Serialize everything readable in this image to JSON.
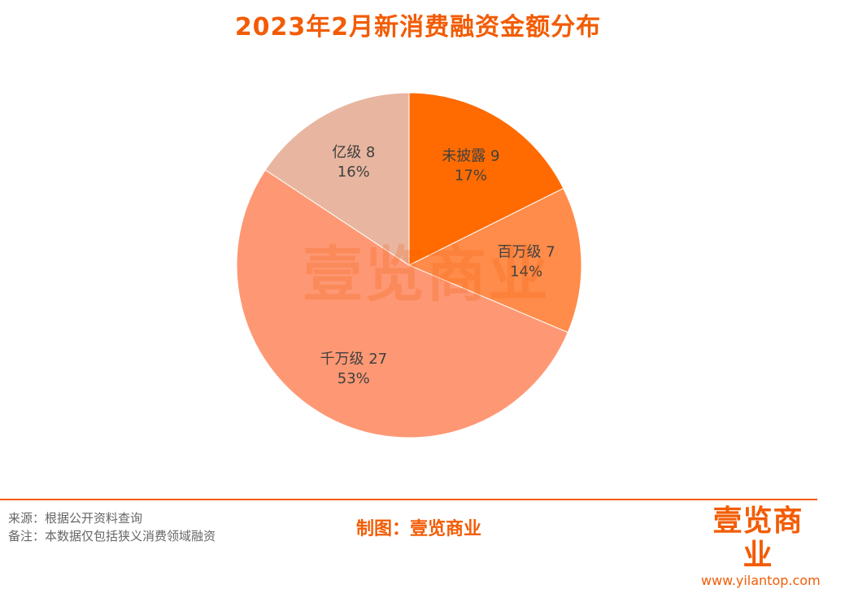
{
  "chart_data": {
    "type": "pie",
    "title": "2023年2月新消费融资金额分布",
    "slices": [
      {
        "label": "未披露",
        "value": 9,
        "percent": "17%",
        "color": "#ff6b00"
      },
      {
        "label": "百万级",
        "value": 7,
        "percent": "14%",
        "color": "#ff8c4a"
      },
      {
        "label": "千万级",
        "value": 27,
        "percent": "53%",
        "color": "#fe9874"
      },
      {
        "label": "亿级",
        "value": 8,
        "percent": "16%",
        "color": "#e8b6a0"
      }
    ]
  },
  "watermark": "壹览商业",
  "footer": {
    "source": "来源：根据公开资料查询",
    "note": "备注：本数据仅包括狭义消费领域融资",
    "credit": "制图：壹览商业",
    "logo_text": "壹览商业",
    "logo_url": "www.yilantop.com"
  }
}
